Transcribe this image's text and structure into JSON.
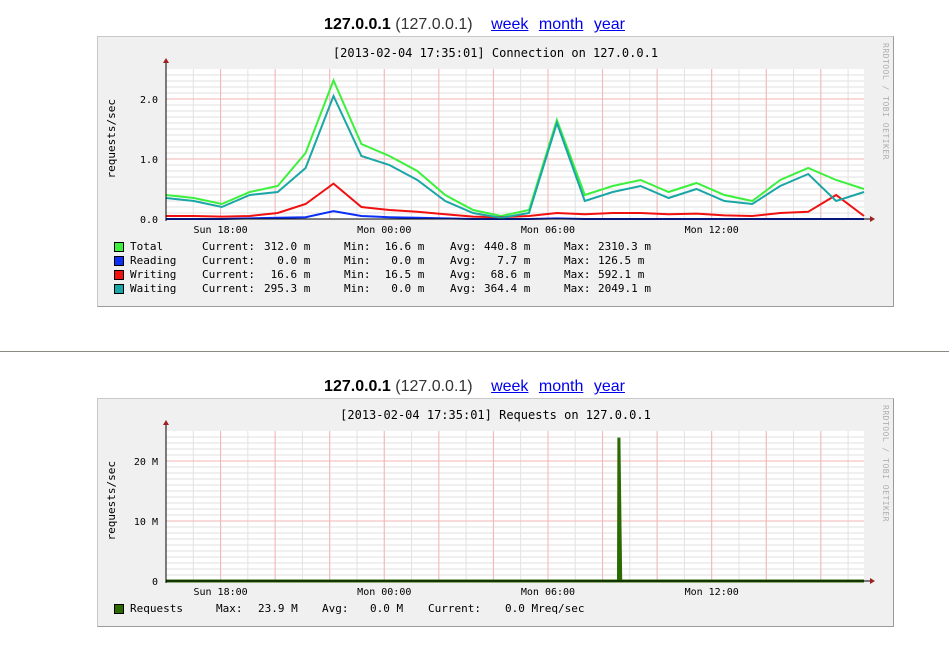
{
  "graphs": [
    {
      "host": "127.0.0.1",
      "ip": "(127.0.0.1)",
      "links": [
        "week",
        "month",
        "year"
      ],
      "title": "[2013-02-04 17:35:01] Connection on 127.0.0.1",
      "side_text": "RRDTOOL / TOBI OETIKER",
      "ylabel": "requests/sec",
      "yticks": [
        "2.0",
        "1.0",
        "0.0"
      ],
      "xticks": [
        "Sun 18:00",
        "Mon 00:00",
        "Mon 06:00",
        "Mon 12:00"
      ],
      "legend": [
        {
          "name": "Total",
          "color": "#3cf03c",
          "current": "312.0 m",
          "min": " 16.6 m",
          "avg": "440.8 m",
          "max": "2310.3 m"
        },
        {
          "name": "Reading",
          "color": "#0b2ff5",
          "current": "  0.0 m",
          "min": "  0.0 m",
          "avg": "  7.7 m",
          "max": "126.5 m"
        },
        {
          "name": "Writing",
          "color": "#f01010",
          "current": " 16.6 m",
          "min": " 16.5 m",
          "avg": " 68.6 m",
          "max": "592.1 m"
        },
        {
          "name": "Waiting",
          "color": "#1aa6a6",
          "current": "295.3 m",
          "min": "  0.0 m",
          "avg": "364.4 m",
          "max": "2049.1 m"
        }
      ],
      "labels": {
        "current": "Current:",
        "min": "Min:",
        "avg": "Avg:",
        "max": "Max:"
      }
    },
    {
      "host": "127.0.0.1",
      "ip": "(127.0.0.1)",
      "links": [
        "week",
        "month",
        "year"
      ],
      "title": "[2013-02-04 17:35:01] Requests on 127.0.0.1",
      "side_text": "RRDTOOL / TOBI OETIKER",
      "ylabel": "requests/sec",
      "yticks": [
        "20 M",
        "10 M",
        "0"
      ],
      "xticks": [
        "Sun 18:00",
        "Mon 00:00",
        "Mon 06:00",
        "Mon 12:00"
      ],
      "legend": [
        {
          "name": "Requests",
          "color": "#2a6a00",
          "max_label": "Max:",
          "max": "23.9 M",
          "avg_label": "Avg:",
          "avg": "0.0 M",
          "current_label": "Current:",
          "current": "0.0 Mreq/sec"
        }
      ]
    }
  ],
  "chart_data": [
    {
      "type": "line",
      "title": "[2013-02-04 17:35:01] Connection on 127.0.0.1",
      "xlabel": "",
      "ylabel": "requests/sec",
      "ylim": [
        0,
        2.5
      ],
      "x_range": [
        "Sun 16:00",
        "Mon 17:35"
      ],
      "grid": true,
      "legend": "bottom",
      "x": [
        "Sun 16",
        "Sun 17",
        "Sun 18",
        "Sun 19",
        "Sun 20",
        "Sun 21",
        "Sun 22",
        "Sun 23",
        "Mon 00",
        "Mon 01",
        "Mon 02",
        "Mon 03",
        "Mon 04",
        "Mon 05",
        "Mon 06",
        "Mon 07",
        "Mon 08",
        "Mon 09",
        "Mon 10",
        "Mon 11",
        "Mon 12",
        "Mon 13",
        "Mon 14",
        "Mon 15",
        "Mon 16",
        "Mon 17"
      ],
      "series": [
        {
          "name": "Total",
          "color": "#3cf03c",
          "values": [
            0.4,
            0.35,
            0.25,
            0.45,
            0.55,
            1.1,
            2.31,
            1.25,
            1.05,
            0.8,
            0.4,
            0.15,
            0.05,
            0.15,
            1.65,
            0.4,
            0.55,
            0.65,
            0.45,
            0.6,
            0.4,
            0.3,
            0.65,
            0.85,
            0.65,
            0.5
          ]
        },
        {
          "name": "Reading",
          "color": "#0b2ff5",
          "values": [
            0.0,
            0.0,
            0.0,
            0.01,
            0.02,
            0.03,
            0.13,
            0.05,
            0.03,
            0.02,
            0.01,
            0.0,
            0.0,
            0.0,
            0.01,
            0.0,
            0.0,
            0.0,
            0.0,
            0.0,
            0.0,
            0.0,
            0.0,
            0.0,
            0.0,
            0.0
          ]
        },
        {
          "name": "Writing",
          "color": "#f01010",
          "values": [
            0.05,
            0.05,
            0.04,
            0.05,
            0.1,
            0.25,
            0.59,
            0.2,
            0.15,
            0.12,
            0.08,
            0.04,
            0.03,
            0.05,
            0.1,
            0.08,
            0.1,
            0.1,
            0.08,
            0.09,
            0.06,
            0.05,
            0.1,
            0.12,
            0.4,
            0.05
          ]
        },
        {
          "name": "Waiting",
          "color": "#1aa6a6",
          "values": [
            0.35,
            0.3,
            0.2,
            0.4,
            0.45,
            0.85,
            2.05,
            1.05,
            0.9,
            0.65,
            0.3,
            0.1,
            0.02,
            0.1,
            1.6,
            0.3,
            0.45,
            0.55,
            0.35,
            0.5,
            0.3,
            0.25,
            0.55,
            0.75,
            0.3,
            0.45
          ]
        }
      ]
    },
    {
      "type": "line",
      "title": "[2013-02-04 17:35:01] Requests on 127.0.0.1",
      "xlabel": "",
      "ylabel": "requests/sec",
      "ylim": [
        0,
        25000000
      ],
      "x_range": [
        "Sun 16:00",
        "Mon 17:35"
      ],
      "grid": true,
      "legend": "bottom",
      "series": [
        {
          "name": "Requests",
          "color": "#2a6a00",
          "x": [
            "Sun 16:00",
            "Mon 08:35",
            "Mon 08:36",
            "Mon 08:40",
            "Mon 17:35"
          ],
          "values": [
            0,
            0,
            23900000,
            0,
            0
          ]
        }
      ]
    }
  ]
}
